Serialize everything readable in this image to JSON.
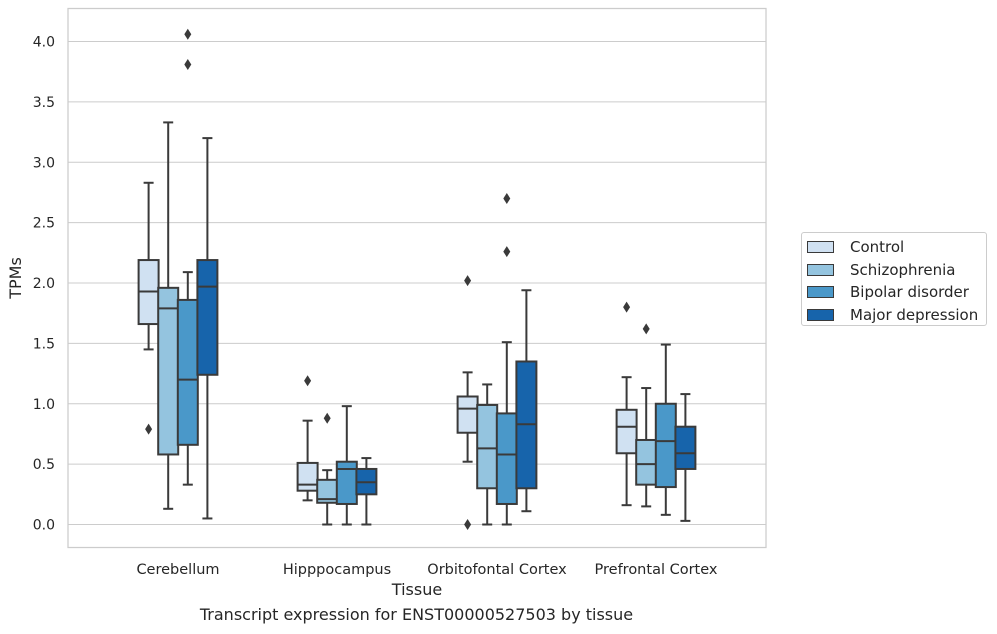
{
  "chart_data": {
    "type": "box",
    "title": "",
    "caption": "Transcript expression for ENST00000527503 by tissue",
    "xlabel": "Tissue",
    "ylabel": "TPMs",
    "ylim": [
      -0.2,
      4.28
    ],
    "yticks": [
      0.0,
      0.5,
      1.0,
      1.5,
      2.0,
      2.5,
      3.0,
      3.5,
      4.0
    ],
    "ytick_labels": [
      "0.0",
      "0.5",
      "1.0",
      "1.5",
      "2.0",
      "2.5",
      "3.0",
      "3.5",
      "4.0"
    ],
    "grid": "horizontal",
    "legend_position": "right",
    "categories": [
      "Cerebellum",
      "Hipppocampus",
      "Orbitofontal Cortex",
      "Prefrontal Cortex"
    ],
    "series": [
      {
        "name": "Control",
        "color": "#d0e1f2",
        "boxes": [
          {
            "whislo": 1.45,
            "q1": 1.66,
            "med": 1.93,
            "q3": 2.19,
            "whishi": 2.83,
            "fliers": [
              0.79
            ]
          },
          {
            "whislo": 0.2,
            "q1": 0.28,
            "med": 0.33,
            "q3": 0.51,
            "whishi": 0.86,
            "fliers": [
              1.19
            ]
          },
          {
            "whislo": 0.52,
            "q1": 0.76,
            "med": 0.96,
            "q3": 1.06,
            "whishi": 1.26,
            "fliers": [
              2.02,
              0.0
            ]
          },
          {
            "whislo": 0.16,
            "q1": 0.59,
            "med": 0.81,
            "q3": 0.95,
            "whishi": 1.22,
            "fliers": [
              1.8
            ]
          }
        ]
      },
      {
        "name": "Schizophrenia",
        "color": "#94c4df",
        "boxes": [
          {
            "whislo": 0.13,
            "q1": 0.58,
            "med": 1.79,
            "q3": 1.96,
            "whishi": 3.33,
            "fliers": []
          },
          {
            "whislo": 0.0,
            "q1": 0.18,
            "med": 0.21,
            "q3": 0.37,
            "whishi": 0.45,
            "fliers": [
              0.88
            ]
          },
          {
            "whislo": 0.0,
            "q1": 0.3,
            "med": 0.63,
            "q3": 0.99,
            "whishi": 1.16,
            "fliers": []
          },
          {
            "whislo": 0.15,
            "q1": 0.33,
            "med": 0.5,
            "q3": 0.7,
            "whishi": 1.13,
            "fliers": [
              1.62
            ]
          }
        ]
      },
      {
        "name": "Bipolar disorder",
        "color": "#4a98c9",
        "boxes": [
          {
            "whislo": 0.33,
            "q1": 0.66,
            "med": 1.2,
            "q3": 1.86,
            "whishi": 2.09,
            "fliers": [
              4.06,
              3.81
            ]
          },
          {
            "whislo": 0.0,
            "q1": 0.17,
            "med": 0.46,
            "q3": 0.52,
            "whishi": 0.98,
            "fliers": []
          },
          {
            "whislo": 0.0,
            "q1": 0.17,
            "med": 0.58,
            "q3": 0.92,
            "whishi": 1.51,
            "fliers": [
              2.7,
              2.26
            ]
          },
          {
            "whislo": 0.08,
            "q1": 0.31,
            "med": 0.69,
            "q3": 1.0,
            "whishi": 1.49,
            "fliers": []
          }
        ]
      },
      {
        "name": "Major depression",
        "color": "#1764ab",
        "boxes": [
          {
            "whislo": 0.05,
            "q1": 1.24,
            "med": 1.97,
            "q3": 2.19,
            "whishi": 3.2,
            "fliers": []
          },
          {
            "whislo": 0.0,
            "q1": 0.25,
            "med": 0.35,
            "q3": 0.46,
            "whishi": 0.55,
            "fliers": []
          },
          {
            "whislo": 0.11,
            "q1": 0.3,
            "med": 0.83,
            "q3": 1.35,
            "whishi": 1.94,
            "fliers": []
          },
          {
            "whislo": 0.03,
            "q1": 0.46,
            "med": 0.59,
            "q3": 0.81,
            "whishi": 1.08,
            "fliers": []
          }
        ]
      }
    ]
  }
}
